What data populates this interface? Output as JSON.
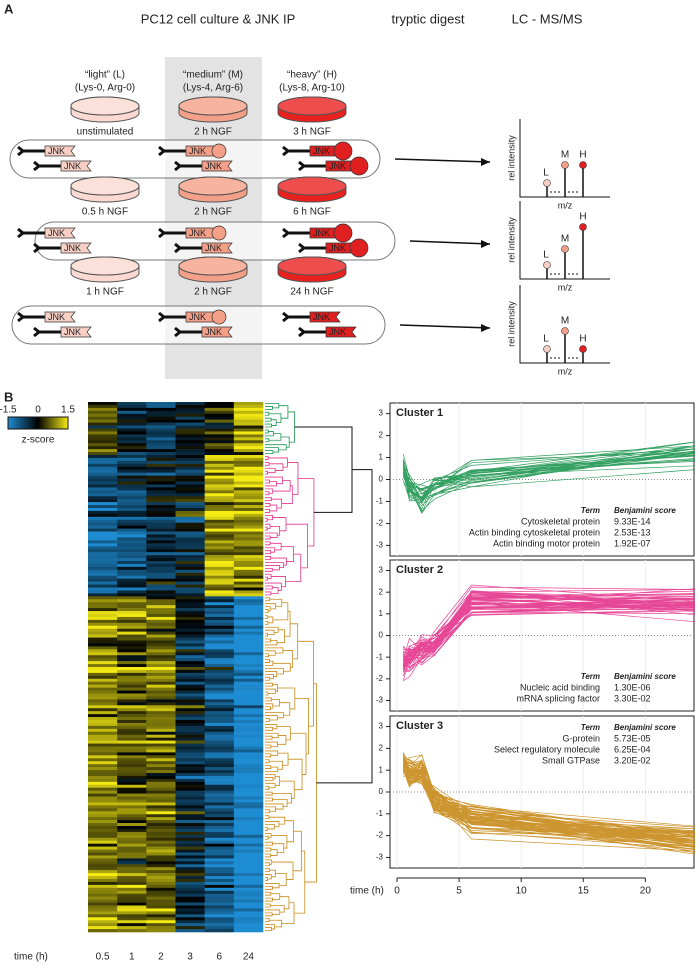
{
  "panel_a": {
    "label": "A",
    "headings": [
      "PC12 cell culture & JNK IP",
      "tryptic digest",
      "LC - MS/MS"
    ],
    "labels": [
      {
        "name": "“light” (L)",
        "detail": "(Lys-0, Arg-0)"
      },
      {
        "name": "“medium” (M)",
        "detail": "(Lys-4, Arg-6)"
      },
      {
        "name": "“heavy” (H)",
        "detail": "(Lys-8, Arg-10)"
      }
    ],
    "rows": [
      [
        "unstimulated",
        "2 h NGF",
        "3 h NGF"
      ],
      [
        "0.5 h NGF",
        "2 h NGF",
        "6 h NGF"
      ],
      [
        "1 h NGF",
        "2 h NGF",
        "24 h NGF"
      ]
    ],
    "protein": "JNK",
    "spectrum": {
      "y_label": "rel intensity",
      "x_label": "m/z",
      "peaks": [
        "L",
        "M",
        "H"
      ]
    }
  },
  "panel_b": {
    "label": "B",
    "scale": {
      "ticks": [
        -1.5,
        0,
        1.5
      ],
      "title": "z-score"
    },
    "heatmap": {
      "x_label": "time (h)",
      "columns": [
        0.5,
        1,
        2,
        3,
        6,
        24
      ]
    },
    "plots": {
      "xlim": [
        0,
        24
      ],
      "ylim": [
        -3.3,
        3.3
      ],
      "xticks": [
        0,
        5,
        10,
        15,
        20
      ],
      "yticks": [
        -3,
        -2,
        -1,
        0,
        1,
        2,
        3
      ],
      "x_label": "time (h)",
      "term_header": "Term",
      "score_header": "Benjamini score"
    },
    "clusters": [
      {
        "title": "Cluster 1",
        "color": "#1e9650",
        "terms": [
          "Cytoskeletal protein",
          "Actin binding cytoskeletal protein",
          "Actin binding motor protein"
        ],
        "scores": [
          "9.33E-14",
          "2.53E-13",
          "1.92E-07"
        ]
      },
      {
        "title": "Cluster 2",
        "color": "#e4338c",
        "terms": [
          "Nucleic acid binding",
          "mRNA splicing factor"
        ],
        "scores": [
          "1.30E-06",
          "3.30E-02"
        ]
      },
      {
        "title": "Cluster 3",
        "color": "#c88a1a",
        "terms": [
          "G-protein",
          "Select regulatory molecule",
          "Small GTPase"
        ],
        "scores": [
          "5.73E-05",
          "6.25E-04",
          "3.20E-02"
        ]
      }
    ]
  }
}
